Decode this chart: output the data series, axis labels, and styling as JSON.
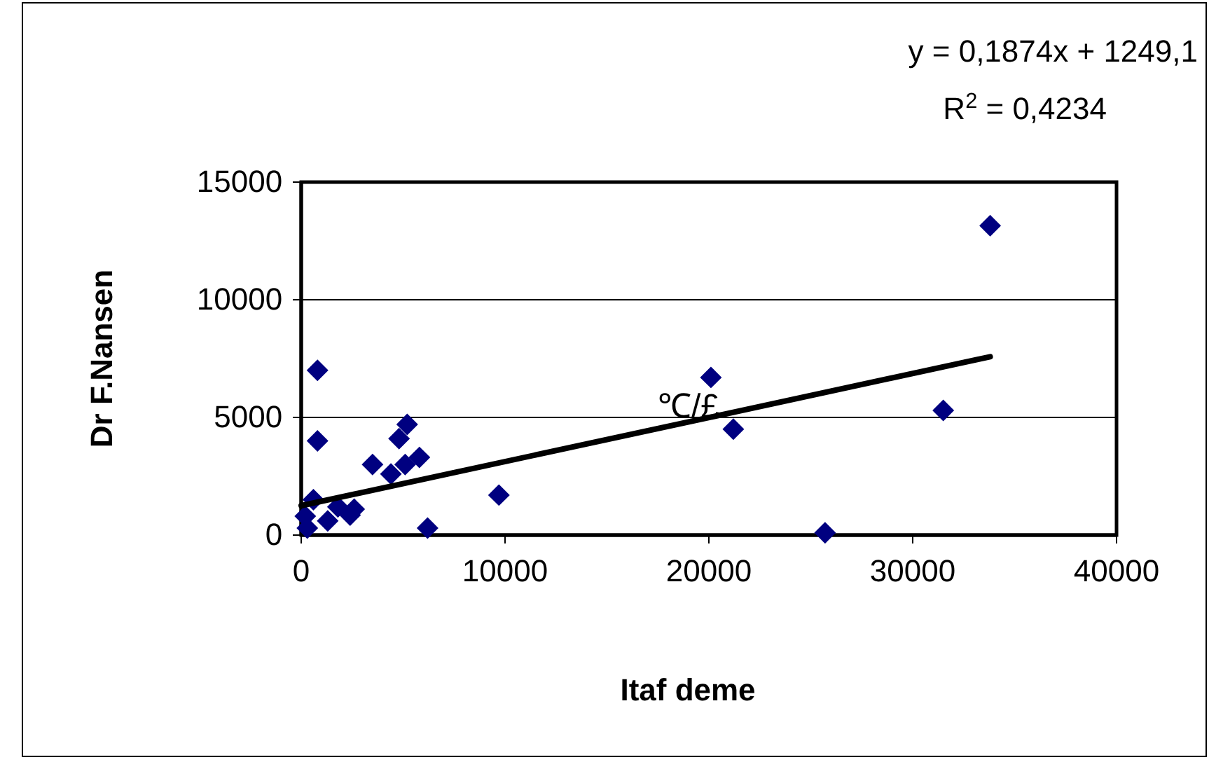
{
  "chart_data": {
    "type": "scatter",
    "xlabel": "Itaf deme",
    "ylabel": "Dr F.Nansen",
    "xlim": [
      0,
      40000
    ],
    "ylim": [
      0,
      15000
    ],
    "xticks": [
      0,
      10000,
      20000,
      30000,
      40000
    ],
    "yticks": [
      0,
      5000,
      10000,
      15000
    ],
    "grid": "y",
    "series": [
      {
        "marker": "diamond",
        "color": "#000080",
        "x": [
          800,
          800,
          200,
          1800,
          600,
          300,
          1300,
          3500,
          4800,
          5200,
          5800,
          5100,
          4400,
          9700,
          6200,
          2600,
          2400,
          20100,
          21200,
          25700,
          31500,
          33800
        ],
        "values": [
          7000,
          4000,
          800,
          1200,
          1500,
          300,
          600,
          3000,
          4100,
          4700,
          3300,
          3000,
          2600,
          1700,
          300,
          1100,
          850,
          6700,
          4500,
          100,
          5300,
          13150
        ]
      },
      {
        "type": "line",
        "color": "#000000",
        "x": [
          0,
          33800
        ],
        "values": [
          1250,
          7580
        ]
      }
    ],
    "annotations": [
      "y = 0,1874x + 1249,1",
      "R$^{2}$ = 0,4234",
      {
        "text": "℃/£",
        "x": 19000,
        "y": 5000
      }
    ]
  }
}
